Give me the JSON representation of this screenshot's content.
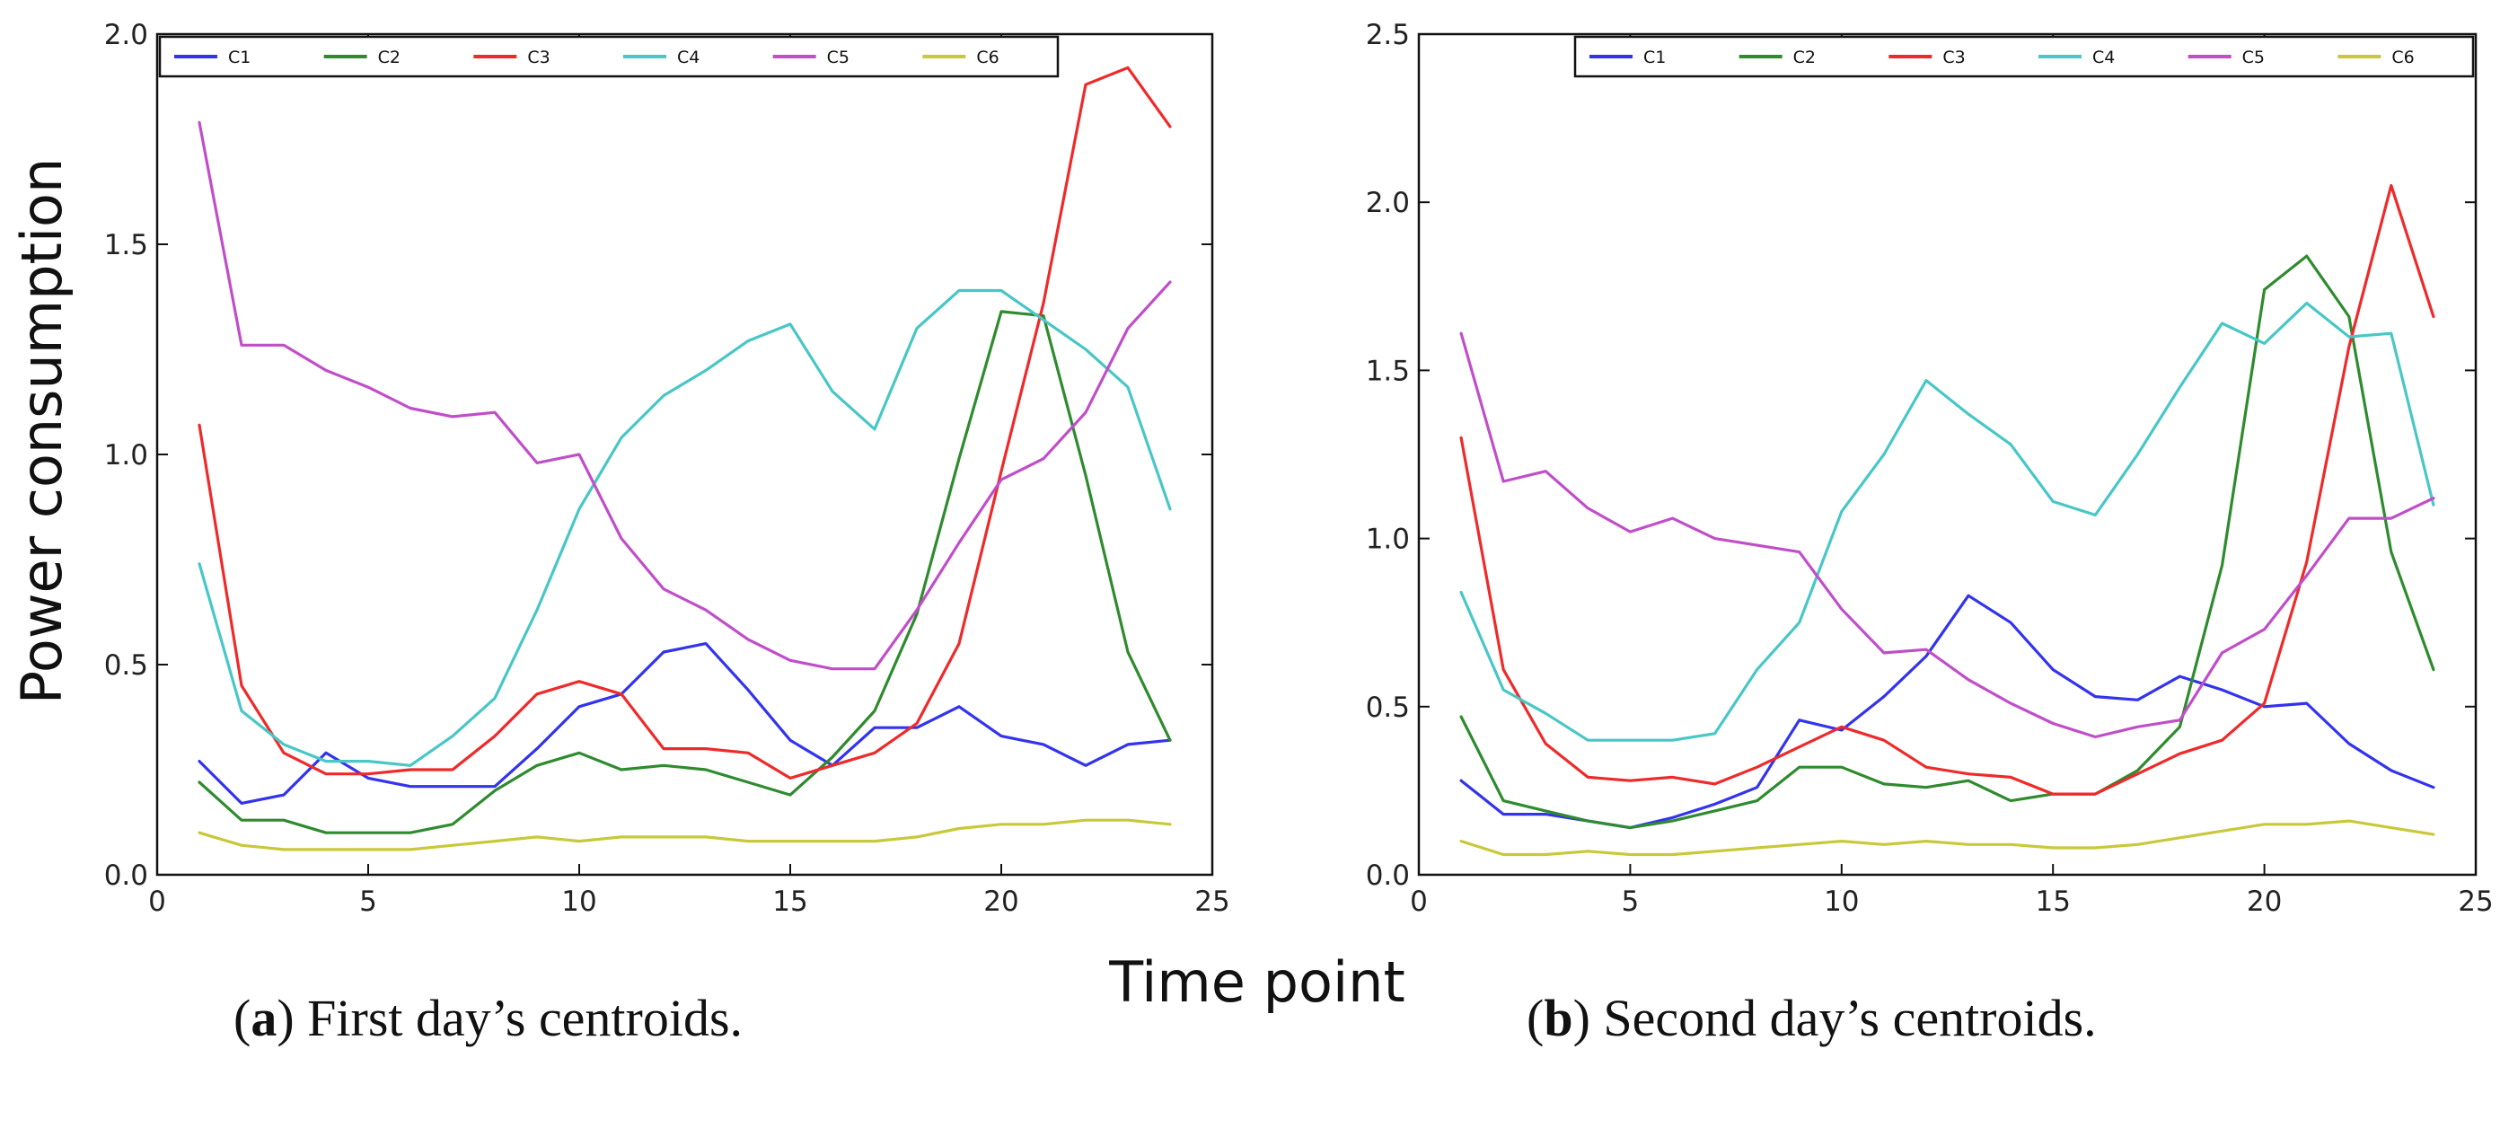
{
  "shared": {
    "ylabel": "Power consumption",
    "xlabel": "Time point",
    "series_colors": {
      "C1": "#3333ee",
      "C2": "#2e8b2e",
      "C3": "#ee2a2a",
      "C4": "#49c6c6",
      "C5": "#c04ec9",
      "C6": "#c8c83a"
    }
  },
  "captions": [
    {
      "letter": "a",
      "text": ") First day’s centroids."
    },
    {
      "letter": "b",
      "text": ") Second day’s centroids."
    }
  ],
  "chart_data": [
    {
      "type": "line",
      "title": "First day's centroids",
      "xlabel": "Time point",
      "ylabel": "Power consumption",
      "xlim": [
        0,
        25
      ],
      "ylim": [
        0,
        2.0
      ],
      "xticks": [
        0,
        5,
        10,
        15,
        20,
        25
      ],
      "yticks": [
        0.0,
        0.5,
        1.0,
        1.5,
        2.0
      ],
      "ytick_labels": [
        "0.0",
        "0.5",
        "1.0",
        "1.5",
        "2.0"
      ],
      "legend_location": "top-left",
      "x": [
        1,
        2,
        3,
        4,
        5,
        6,
        7,
        8,
        9,
        10,
        11,
        12,
        13,
        14,
        15,
        16,
        17,
        18,
        19,
        20,
        21,
        22,
        23,
        24
      ],
      "series": [
        {
          "name": "C1",
          "values": [
            0.27,
            0.17,
            0.19,
            0.29,
            0.23,
            0.21,
            0.21,
            0.21,
            0.3,
            0.4,
            0.43,
            0.53,
            0.55,
            0.44,
            0.32,
            0.26,
            0.35,
            0.35,
            0.4,
            0.33,
            0.31,
            0.26,
            0.31,
            0.32
          ]
        },
        {
          "name": "C2",
          "values": [
            0.22,
            0.13,
            0.13,
            0.1,
            0.1,
            0.1,
            0.12,
            0.2,
            0.26,
            0.29,
            0.25,
            0.26,
            0.25,
            0.22,
            0.19,
            0.28,
            0.39,
            0.62,
            0.99,
            1.34,
            1.33,
            0.95,
            0.53,
            0.32
          ]
        },
        {
          "name": "C3",
          "values": [
            1.07,
            0.45,
            0.29,
            0.24,
            0.24,
            0.25,
            0.25,
            0.33,
            0.43,
            0.46,
            0.43,
            0.3,
            0.3,
            0.29,
            0.23,
            0.26,
            0.29,
            0.36,
            0.55,
            0.96,
            1.36,
            1.88,
            1.92,
            1.78
          ]
        },
        {
          "name": "C4",
          "values": [
            0.74,
            0.39,
            0.31,
            0.27,
            0.27,
            0.26,
            0.33,
            0.42,
            0.63,
            0.87,
            1.04,
            1.14,
            1.2,
            1.27,
            1.31,
            1.15,
            1.06,
            1.3,
            1.39,
            1.39,
            1.32,
            1.25,
            1.16,
            0.87
          ]
        },
        {
          "name": "C5",
          "values": [
            1.79,
            1.26,
            1.26,
            1.2,
            1.16,
            1.11,
            1.09,
            1.1,
            0.98,
            1.0,
            0.8,
            0.68,
            0.63,
            0.56,
            0.51,
            0.49,
            0.49,
            0.63,
            0.79,
            0.94,
            0.99,
            1.1,
            1.3,
            1.41
          ]
        },
        {
          "name": "C6",
          "values": [
            0.1,
            0.07,
            0.06,
            0.06,
            0.06,
            0.06,
            0.07,
            0.08,
            0.09,
            0.08,
            0.09,
            0.09,
            0.09,
            0.08,
            0.08,
            0.08,
            0.08,
            0.09,
            0.11,
            0.12,
            0.12,
            0.13,
            0.13,
            0.12
          ]
        }
      ]
    },
    {
      "type": "line",
      "title": "Second day's centroids",
      "xlabel": "Time point",
      "ylabel": "Power consumption",
      "xlim": [
        0,
        25
      ],
      "ylim": [
        0,
        2.5
      ],
      "xticks": [
        0,
        5,
        10,
        15,
        20,
        25
      ],
      "yticks": [
        0.0,
        0.5,
        1.0,
        1.5,
        2.0,
        2.5
      ],
      "ytick_labels": [
        "0.0",
        "0.5",
        "1.0",
        "1.5",
        "2.0",
        "2.5"
      ],
      "legend_location": "top-right",
      "x": [
        1,
        2,
        3,
        4,
        5,
        6,
        7,
        8,
        9,
        10,
        11,
        12,
        13,
        14,
        15,
        16,
        17,
        18,
        19,
        20,
        21,
        22,
        23,
        24
      ],
      "series": [
        {
          "name": "C1",
          "values": [
            0.28,
            0.18,
            0.18,
            0.16,
            0.14,
            0.17,
            0.21,
            0.26,
            0.46,
            0.43,
            0.53,
            0.65,
            0.83,
            0.75,
            0.61,
            0.53,
            0.52,
            0.59,
            0.55,
            0.5,
            0.51,
            0.39,
            0.31,
            0.26
          ]
        },
        {
          "name": "C2",
          "values": [
            0.47,
            0.22,
            0.19,
            0.16,
            0.14,
            0.16,
            0.19,
            0.22,
            0.32,
            0.32,
            0.27,
            0.26,
            0.28,
            0.22,
            0.24,
            0.24,
            0.31,
            0.44,
            0.92,
            1.74,
            1.84,
            1.66,
            0.96,
            0.61
          ]
        },
        {
          "name": "C3",
          "values": [
            1.3,
            0.61,
            0.39,
            0.29,
            0.28,
            0.29,
            0.27,
            0.32,
            0.38,
            0.44,
            0.4,
            0.32,
            0.3,
            0.29,
            0.24,
            0.24,
            0.3,
            0.36,
            0.4,
            0.51,
            0.93,
            1.57,
            2.05,
            1.66
          ]
        },
        {
          "name": "C4",
          "values": [
            0.84,
            0.55,
            0.48,
            0.4,
            0.4,
            0.4,
            0.42,
            0.61,
            0.75,
            1.08,
            1.25,
            1.47,
            1.37,
            1.28,
            1.11,
            1.07,
            1.25,
            1.45,
            1.64,
            1.58,
            1.7,
            1.6,
            1.61,
            1.1
          ]
        },
        {
          "name": "C5",
          "values": [
            1.61,
            1.17,
            1.2,
            1.09,
            1.02,
            1.06,
            1.0,
            0.98,
            0.96,
            0.79,
            0.66,
            0.67,
            0.58,
            0.51,
            0.45,
            0.41,
            0.44,
            0.46,
            0.66,
            0.73,
            0.89,
            1.06,
            1.06,
            1.12
          ]
        },
        {
          "name": "C6",
          "values": [
            0.1,
            0.06,
            0.06,
            0.07,
            0.06,
            0.06,
            0.07,
            0.08,
            0.09,
            0.1,
            0.09,
            0.1,
            0.09,
            0.09,
            0.08,
            0.08,
            0.09,
            0.11,
            0.13,
            0.15,
            0.15,
            0.16,
            0.14,
            0.12
          ]
        }
      ]
    }
  ]
}
